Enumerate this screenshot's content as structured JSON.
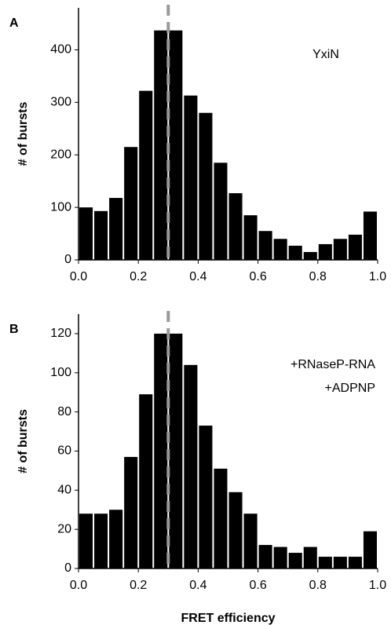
{
  "chart_data": [
    {
      "type": "histogram",
      "panel": "A",
      "ylabel": "# of bursts",
      "annotations": [
        "YxiN"
      ],
      "bins": [
        0.0,
        0.05,
        0.1,
        0.15,
        0.2,
        0.25,
        0.3,
        0.35,
        0.4,
        0.45,
        0.5,
        0.55,
        0.6,
        0.65,
        0.7,
        0.75,
        0.8,
        0.85,
        0.9,
        0.95,
        1.0
      ],
      "values": [
        100,
        93,
        118,
        215,
        322,
        437,
        437,
        313,
        280,
        185,
        127,
        85,
        55,
        40,
        27,
        15,
        30,
        40,
        48,
        92
      ],
      "color": "#000000",
      "vline": 0.3,
      "vline_color": "#999999",
      "xlim": [
        0,
        1
      ],
      "xticks": [
        {
          "value": 0,
          "label": "0.0"
        },
        0.2,
        0.4,
        0.6,
        0.8,
        {
          "value": 1,
          "label": "1.0"
        }
      ],
      "ylim": [
        0,
        480
      ],
      "yticks": [
        0,
        100,
        200,
        300,
        400
      ]
    },
    {
      "type": "histogram",
      "panel": "B",
      "ylabel": "# of bursts",
      "xlabel": "FRET efficiency",
      "annotations": [
        "+RNaseP-RNA",
        "+ADPNP"
      ],
      "bins": [
        0.0,
        0.05,
        0.1,
        0.15,
        0.2,
        0.25,
        0.3,
        0.35,
        0.4,
        0.45,
        0.5,
        0.55,
        0.6,
        0.65,
        0.7,
        0.75,
        0.8,
        0.85,
        0.9,
        0.95,
        1.0
      ],
      "values": [
        28,
        28,
        30,
        57,
        89,
        120,
        120,
        104,
        73,
        51,
        39,
        28,
        12,
        11,
        8,
        11,
        6,
        6,
        6,
        19
      ],
      "color": "#000000",
      "vline": 0.3,
      "vline_color": "#999999",
      "xlim": [
        0,
        1
      ],
      "xticks": [
        {
          "value": 0,
          "label": "0.0"
        },
        0.2,
        0.4,
        0.6,
        0.8,
        {
          "value": 1,
          "label": "1.0"
        }
      ],
      "ylim": [
        0,
        130
      ],
      "yticks": [
        0,
        20,
        40,
        60,
        80,
        100,
        120
      ]
    }
  ]
}
